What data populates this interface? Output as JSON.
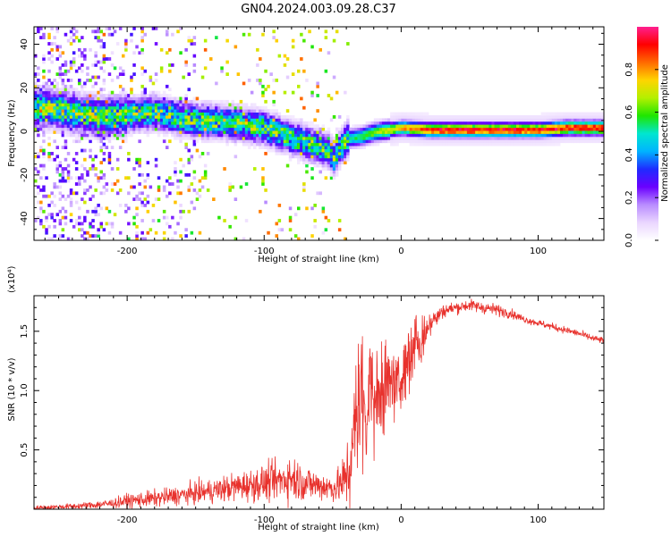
{
  "title": "GN04.2024.003.09.28.C37",
  "colors": {
    "snr_line": "#e8322d",
    "colormap": [
      "#ffffff",
      "#ead6ff",
      "#b98cff",
      "#6a00ff",
      "#1f2bff",
      "#00b4ff",
      "#00e6d0",
      "#1fe600",
      "#b4f000",
      "#ffd400",
      "#ff6a00",
      "#ff0000",
      "#ff1f8f"
    ]
  },
  "chart_data": [
    {
      "type": "heatmap",
      "title": "",
      "xlabel": "Height of straight line (km)",
      "ylabel": "Frequency (Hz)",
      "xlim": [
        -268,
        148
      ],
      "ylim": [
        -50,
        48
      ],
      "xticks": [
        -200,
        -100,
        0,
        100
      ],
      "xtick_labels": [
        "-200",
        "-100",
        "0",
        "100"
      ],
      "yticks": [
        -40,
        -20,
        0,
        20,
        40
      ],
      "ytick_labels": [
        "-40",
        "-20",
        "0",
        "20",
        "40"
      ],
      "colorbar": {
        "label": "Normalized spectral amplitude",
        "range": [
          0.0,
          1.0
        ],
        "ticks": [
          0.0,
          0.2,
          0.4,
          0.6,
          0.8
        ],
        "tick_labels": [
          "0.0",
          "0.2",
          "0.4",
          "0.6",
          "0.8"
        ]
      },
      "ridge": {
        "x": [
          -255,
          -240,
          -220,
          -200,
          -180,
          -160,
          -140,
          -120,
          -100,
          -80,
          -65,
          -55,
          -50,
          -45,
          -40,
          -30,
          -20,
          -10,
          0,
          20,
          40,
          60,
          80,
          100,
          120,
          148
        ],
        "y": [
          10,
          8,
          6,
          7,
          8,
          5,
          4,
          3,
          1,
          -4,
          -7,
          -9,
          -13,
          -8,
          -4,
          -3,
          -1,
          0,
          1,
          0,
          0,
          0,
          0,
          0,
          1,
          1
        ]
      },
      "grid": false
    },
    {
      "type": "line",
      "title": "",
      "xlabel": "Height of straight line (km)",
      "ylabel": "SNR (10 * v/v)",
      "y_multiplier": "(x10⁴)",
      "xlim": [
        -268,
        148
      ],
      "ylim": [
        0,
        1.8
      ],
      "xticks": [
        -200,
        -100,
        0,
        100
      ],
      "xtick_labels": [
        "-200",
        "-100",
        "0",
        "100"
      ],
      "yticks": [
        0.5,
        1.0,
        1.5
      ],
      "ytick_labels": [
        "0.5",
        "1.0",
        "1.5"
      ],
      "series": [
        {
          "x": [
            -268,
            -250,
            -230,
            -210,
            -200,
            -180,
            -160,
            -140,
            -120,
            -100,
            -90,
            -80,
            -70,
            -60,
            -50,
            -45,
            -40,
            -35,
            -30,
            -25,
            -20,
            -15,
            -10,
            -5,
            0,
            5,
            10,
            15,
            20,
            25,
            30,
            40,
            50,
            60,
            70,
            80,
            90,
            100,
            110,
            120,
            130,
            140,
            148
          ],
          "y": [
            0.01,
            0.02,
            0.03,
            0.05,
            0.07,
            0.09,
            0.12,
            0.15,
            0.19,
            0.22,
            0.24,
            0.27,
            0.22,
            0.2,
            0.18,
            0.2,
            0.25,
            0.5,
            0.85,
            0.9,
            0.85,
            1.0,
            1.05,
            1.0,
            1.1,
            1.2,
            1.35,
            1.42,
            1.55,
            1.6,
            1.67,
            1.7,
            1.72,
            1.7,
            1.68,
            1.65,
            1.6,
            1.57,
            1.54,
            1.51,
            1.48,
            1.44,
            1.42
          ],
          "noise": [
            0.02,
            0.02,
            0.03,
            0.04,
            0.06,
            0.07,
            0.08,
            0.1,
            0.12,
            0.15,
            0.16,
            0.2,
            0.15,
            0.13,
            0.12,
            0.15,
            0.3,
            0.5,
            0.6,
            0.55,
            0.45,
            0.4,
            0.35,
            0.3,
            0.3,
            0.25,
            0.3,
            0.2,
            0.1,
            0.08,
            0.06,
            0.05,
            0.05,
            0.05,
            0.05,
            0.04,
            0.03,
            0.03,
            0.03,
            0.03,
            0.03,
            0.03,
            0.03
          ]
        }
      ],
      "grid": false
    }
  ]
}
